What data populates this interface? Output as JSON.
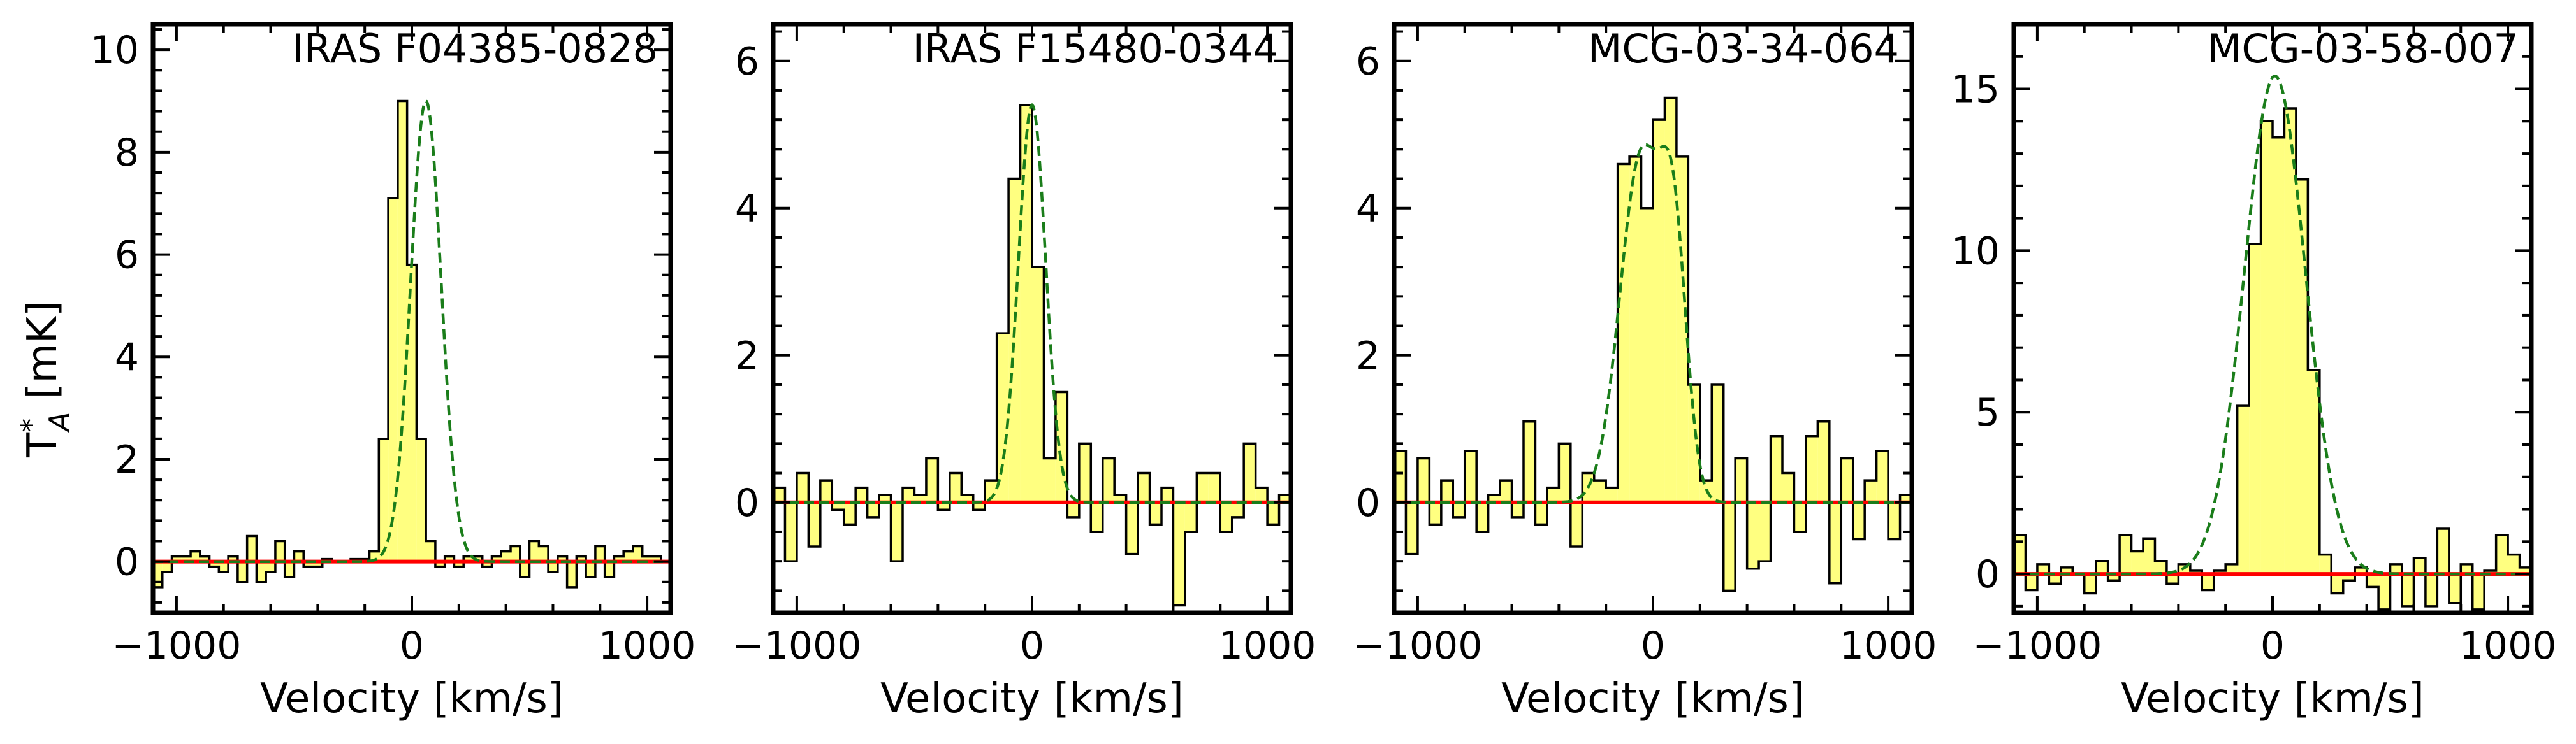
{
  "figure": {
    "ylabel_main": "T",
    "ylabel_sup": "*",
    "ylabel_sub": "A",
    "ylabel_unit": " [mK]"
  },
  "chart_data": [
    {
      "type": "step",
      "title": "IRAS F04385-0828",
      "xlabel": "Velocity [km/s]",
      "ylabel": "T*A [mK]",
      "xlim": [
        -1100,
        1100
      ],
      "ylim": [
        -1.0,
        10.5
      ],
      "xticks": [
        -1000,
        0,
        1000
      ],
      "xtick_labels": [
        "−1000",
        "0",
        "1000"
      ],
      "yticks": [
        0,
        2,
        4,
        6,
        8,
        10
      ],
      "ytick_labels": [
        "0",
        "2",
        "4",
        "6",
        "8",
        "10"
      ],
      "bin_start": -1100,
      "bin_width": 40,
      "values": [
        -0.5,
        -0.2,
        0.1,
        0.1,
        0.2,
        0.1,
        -0.1,
        -0.2,
        0.1,
        -0.4,
        0.5,
        -0.4,
        -0.2,
        0.4,
        -0.3,
        0.2,
        -0.1,
        -0.1,
        0.05,
        0.0,
        0.0,
        0.05,
        0.05,
        0.2,
        2.4,
        7.1,
        9.0,
        5.8,
        2.4,
        0.4,
        -0.1,
        0.1,
        -0.1,
        0.1,
        0.1,
        -0.1,
        0.1,
        0.2,
        0.3,
        -0.3,
        0.4,
        0.3,
        -0.2,
        0.1,
        -0.5,
        0.1,
        -0.3,
        0.3,
        -0.3,
        0.1,
        0.2,
        0.3,
        0.1,
        0.1,
        0.0
      ],
      "fit": {
        "peak": 9.0,
        "center": 60,
        "sigma": 65,
        "peak2": 0,
        "center2": 0,
        "sigma2": 65
      },
      "fill_color": "#ffff80",
      "edge_color": "#000000",
      "fit_color": "#1a7d1a",
      "baseline_color": "#ff0000"
    },
    {
      "type": "step",
      "title": "IRAS F15480-0344",
      "xlabel": "Velocity [km/s]",
      "ylabel": "",
      "xlim": [
        -1100,
        1100
      ],
      "ylim": [
        -1.5,
        6.5
      ],
      "xticks": [
        -1000,
        0,
        1000
      ],
      "xtick_labels": [
        "−1000",
        "0",
        "1000"
      ],
      "yticks": [
        0,
        2,
        4,
        6
      ],
      "ytick_labels": [
        "0",
        "2",
        "4",
        "6"
      ],
      "bin_start": -1100,
      "bin_width": 50,
      "values": [
        0.2,
        -0.8,
        0.4,
        -0.6,
        0.3,
        -0.1,
        -0.3,
        0.2,
        -0.2,
        0.1,
        -0.8,
        0.2,
        0.1,
        0.6,
        -0.1,
        0.4,
        0.1,
        -0.1,
        0.3,
        2.3,
        4.4,
        5.4,
        3.2,
        0.6,
        1.5,
        -0.2,
        0.8,
        -0.4,
        0.6,
        0.1,
        -0.7,
        0.4,
        -0.3,
        0.2,
        -1.4,
        -0.4,
        0.4,
        0.4,
        -0.4,
        -0.2,
        0.8,
        0.2,
        -0.3,
        0.1
      ],
      "fit": {
        "peak": 5.4,
        "center": 0,
        "sigma": 58,
        "peak2": 0,
        "center2": 0,
        "sigma2": 58
      },
      "fill_color": "#ffff80",
      "edge_color": "#000000",
      "fit_color": "#1a7d1a",
      "baseline_color": "#ff0000"
    },
    {
      "type": "step",
      "title": "MCG-03-34-064",
      "xlabel": "Velocity [km/s]",
      "ylabel": "",
      "xlim": [
        -1100,
        1100
      ],
      "ylim": [
        -1.5,
        6.5
      ],
      "xticks": [
        -1000,
        0,
        1000
      ],
      "xtick_labels": [
        "−1000",
        "0",
        "1000"
      ],
      "yticks": [
        0,
        2,
        4,
        6
      ],
      "ytick_labels": [
        "0",
        "2",
        "4",
        "6"
      ],
      "bin_start": -1100,
      "bin_width": 50,
      "values": [
        0.7,
        -0.7,
        0.6,
        -0.3,
        0.3,
        -0.2,
        0.7,
        -0.4,
        0.1,
        0.3,
        -0.2,
        1.1,
        -0.3,
        0.2,
        0.8,
        -0.6,
        0.4,
        0.3,
        0.2,
        4.6,
        4.7,
        4.0,
        5.2,
        5.5,
        4.7,
        1.6,
        0.3,
        1.6,
        -1.2,
        0.6,
        -0.9,
        -0.8,
        0.9,
        0.4,
        -0.4,
        0.9,
        1.1,
        -1.1,
        0.6,
        -0.5,
        0.3,
        0.7,
        -0.5,
        0.1
      ],
      "fit": {
        "peak": 4.7,
        "center": -50,
        "sigma": 90,
        "peak2": 3.0,
        "center2": 90,
        "sigma2": 55
      },
      "fill_color": "#ffff80",
      "edge_color": "#000000",
      "fit_color": "#1a7d1a",
      "baseline_color": "#ff0000"
    },
    {
      "type": "step",
      "title": "MCG-03-58-007",
      "xlabel": "Velocity [km/s]",
      "ylabel": "",
      "xlim": [
        -1100,
        1100
      ],
      "ylim": [
        -1.2,
        17.0
      ],
      "xticks": [
        -1000,
        0,
        1000
      ],
      "xtick_labels": [
        "−1000",
        "0",
        "1000"
      ],
      "yticks": [
        0,
        5,
        10,
        15
      ],
      "ytick_labels": [
        "0",
        "5",
        "10",
        "15"
      ],
      "bin_start": -1100,
      "bin_width": 50,
      "values": [
        1.2,
        -0.5,
        0.3,
        -0.3,
        0.2,
        0.0,
        -0.6,
        0.4,
        -0.2,
        1.2,
        0.7,
        1.1,
        0.4,
        -0.3,
        0.3,
        0.1,
        -0.5,
        0.1,
        0.3,
        5.2,
        10.2,
        14.0,
        13.5,
        14.4,
        12.2,
        6.3,
        0.6,
        -0.6,
        -0.2,
        0.2,
        -0.4,
        -1.1,
        0.3,
        -1.0,
        0.5,
        -1.0,
        1.4,
        -0.9,
        0.3,
        -1.1,
        0.1,
        1.2,
        0.6,
        0.2
      ],
      "fit": {
        "peak": 15.4,
        "center": 10,
        "sigma": 130,
        "peak2": 0,
        "center2": 0,
        "sigma2": 130
      },
      "fill_color": "#ffff80",
      "edge_color": "#000000",
      "fit_color": "#1a7d1a",
      "baseline_color": "#ff0000"
    }
  ]
}
